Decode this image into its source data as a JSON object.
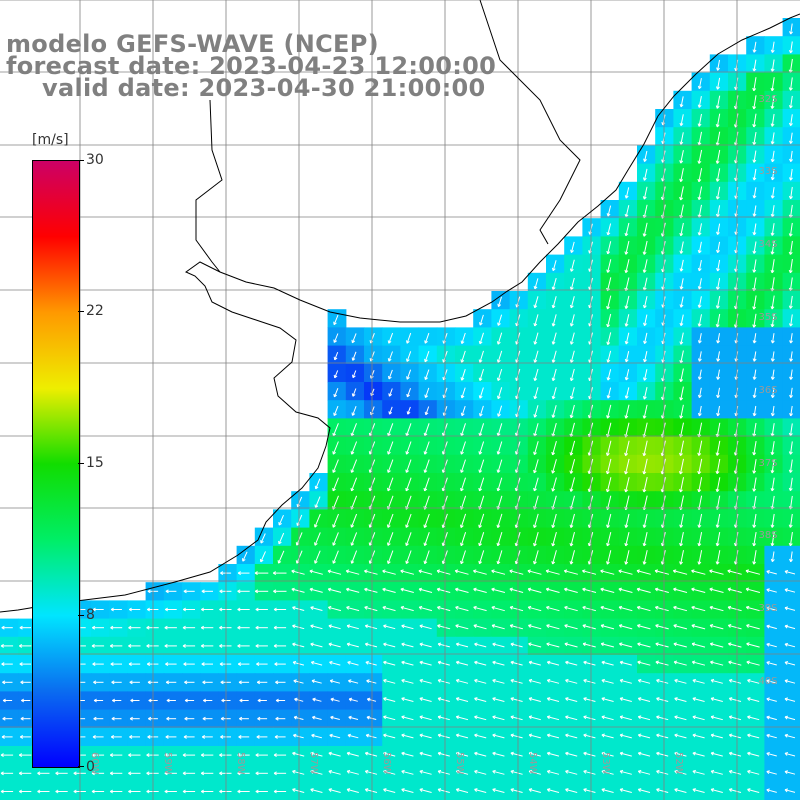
{
  "title": {
    "line1": "modelo GEFS-WAVE (NCEP)",
    "line2": "forecast date: 2023-04-23 12:00:00",
    "line3": "valid date: 2023-04-30 21:00:00"
  },
  "colorbar": {
    "unit": "[m/s]",
    "ticks": [
      "30",
      "22",
      "15",
      "8",
      "0"
    ],
    "tick_values": [
      30,
      22,
      15,
      8,
      0
    ],
    "range": [
      0,
      30
    ],
    "colors": [
      "#0000ff",
      "#0a6cf0",
      "#00e5ff",
      "#00ee66",
      "#11dd00",
      "#eeee00",
      "#ff9900",
      "#ff0000",
      "#cc0066"
    ]
  },
  "map": {
    "lat_labels": [
      "32S",
      "33S",
      "34S",
      "35S",
      "36S",
      "37S",
      "38S",
      "39S",
      "40S"
    ],
    "lon_labels": [
      "60W",
      "59W",
      "58W",
      "57W",
      "56W",
      "55W",
      "54W",
      "53W",
      "52W"
    ],
    "land_color": "#ffffff",
    "grid_color": "#808080",
    "coast_color": "#000000",
    "arrow_color": "#ffffff"
  }
}
